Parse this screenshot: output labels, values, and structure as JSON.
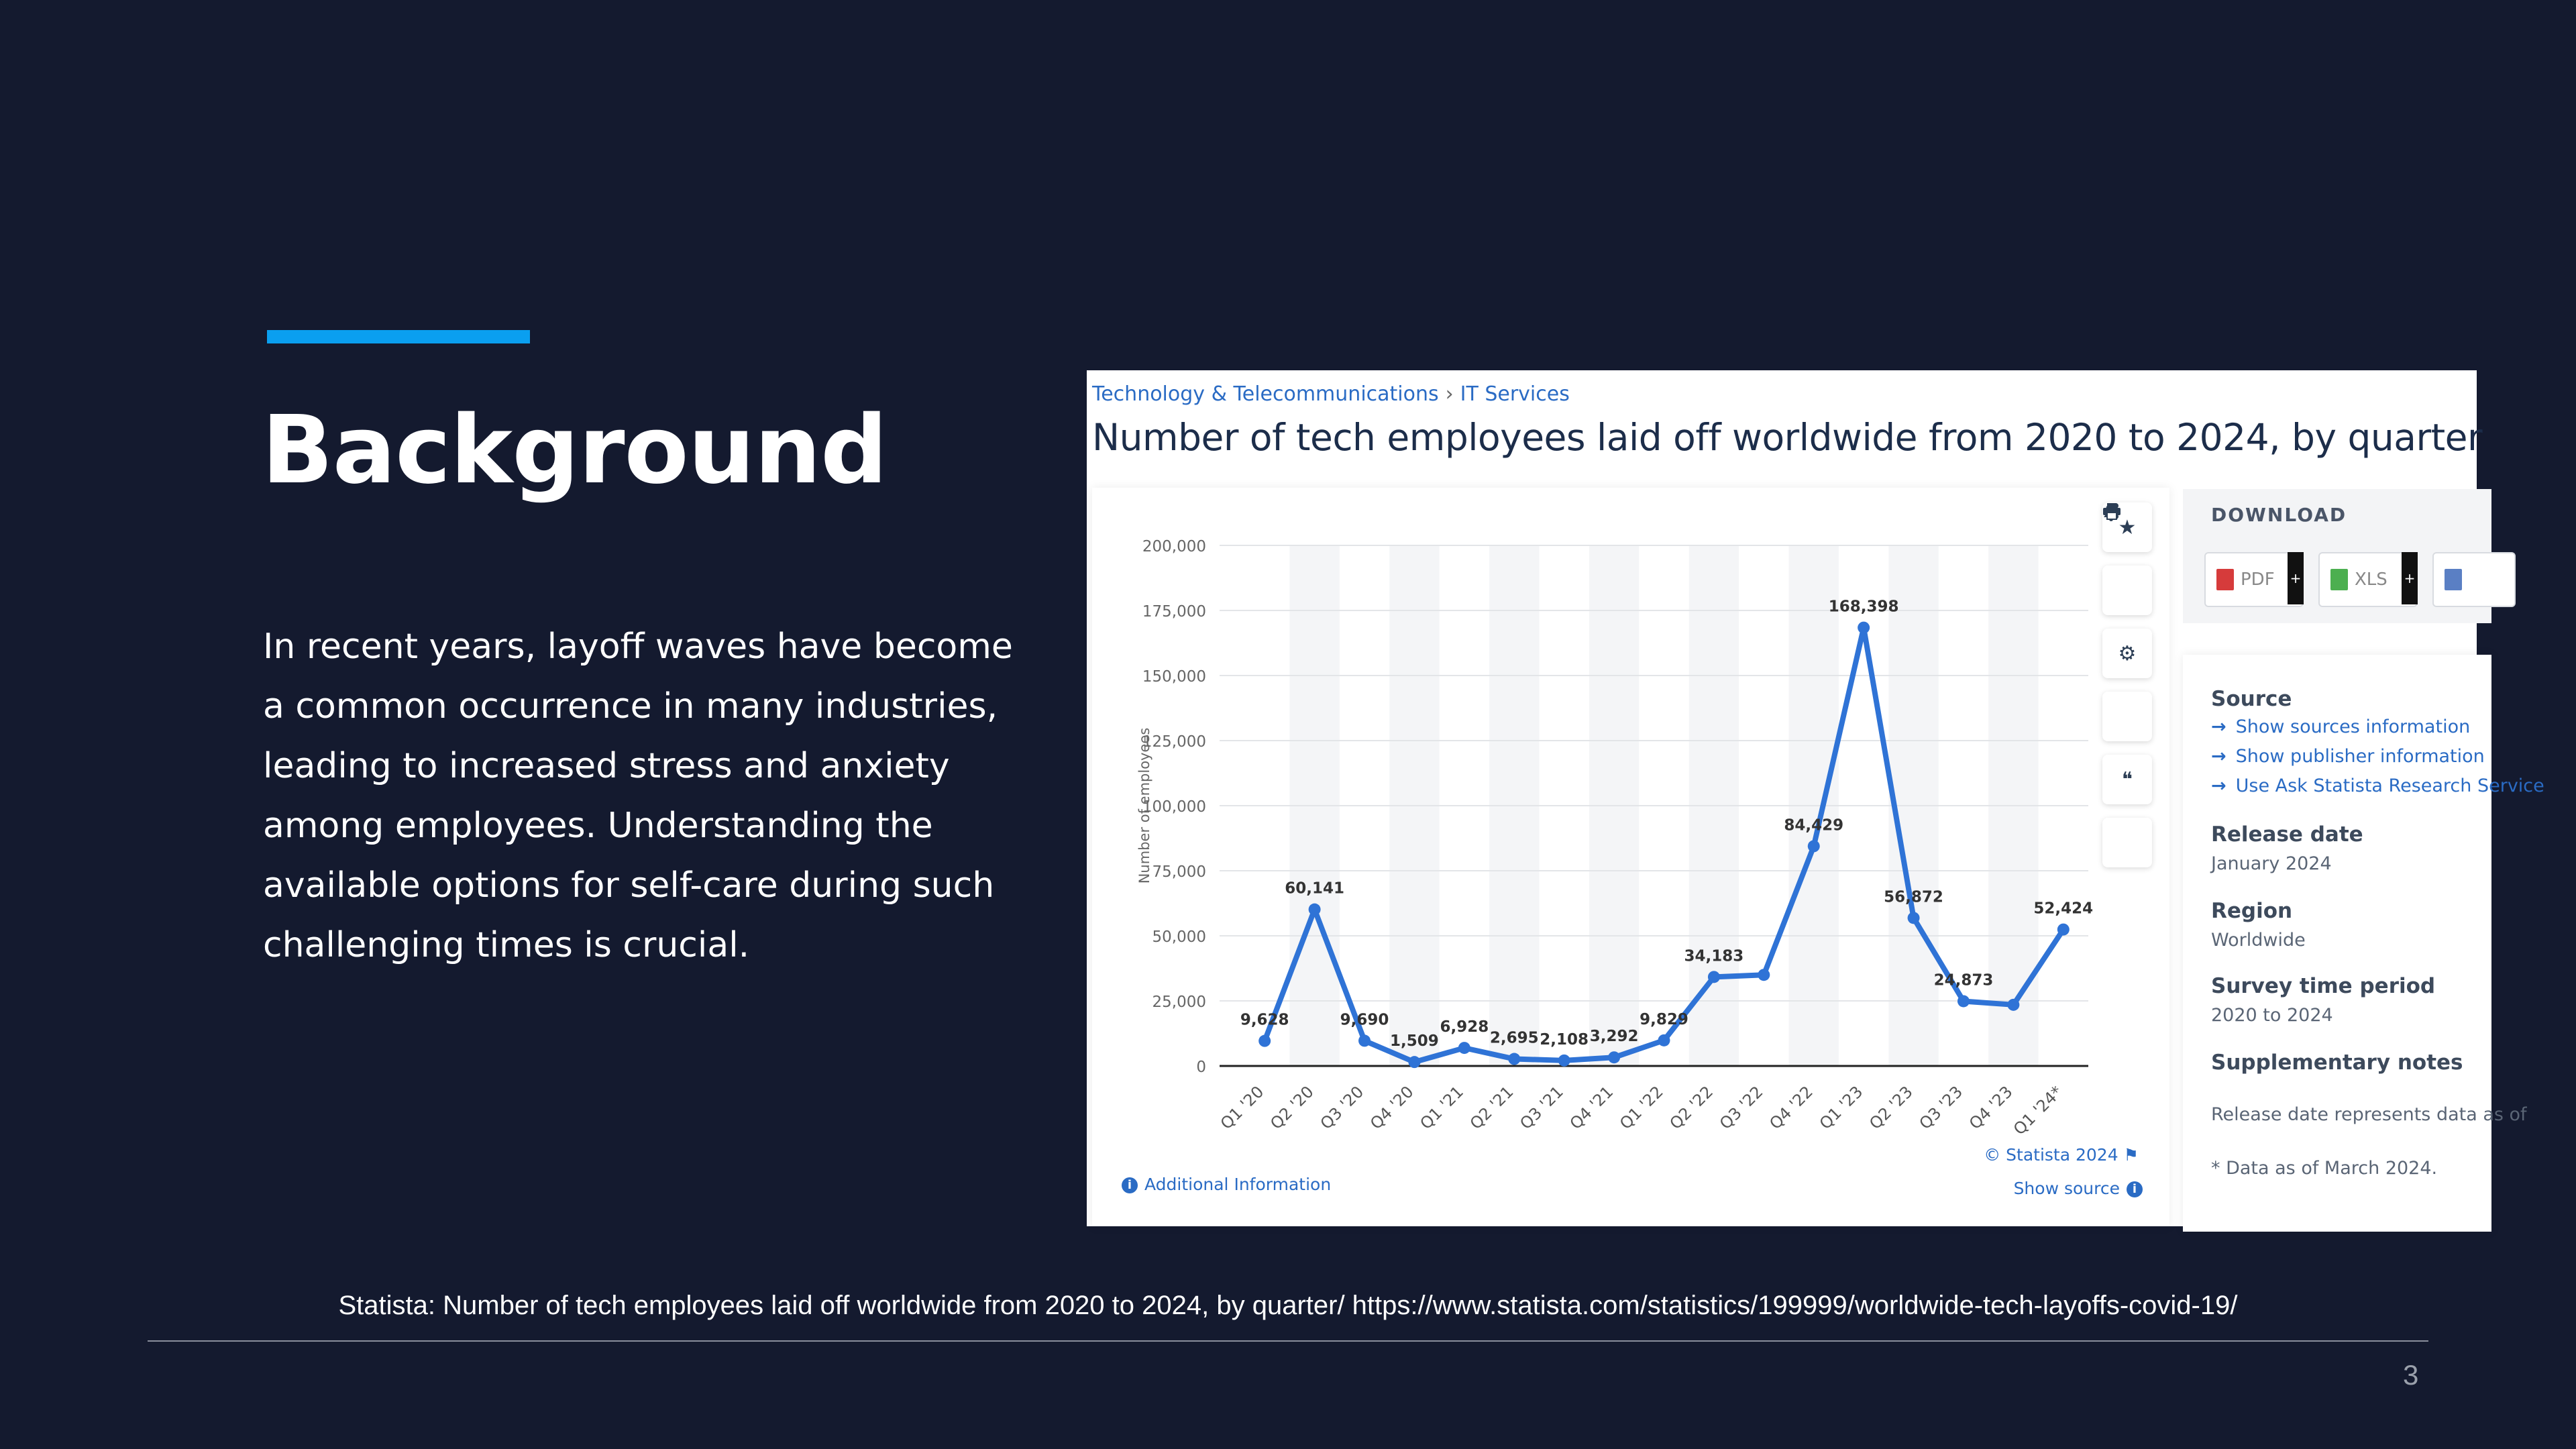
{
  "slide": {
    "title": "Background",
    "body": "In recent years, layoff waves have become a common occurrence in many industries, leading to increased stress and anxiety among employees. Understanding the available options for self-care during such challenging times is crucial.",
    "caption": "Statista: Number of tech employees laid off worldwide from 2020 to 2024, by quarter/ https://www.statista.com/statistics/199999/worldwide-tech-layoffs-covid-19/",
    "page_number": "3",
    "accent_color": "#0a9ff0",
    "background_color": "#141a2f"
  },
  "statista": {
    "breadcrumb": [
      "Technology & Telecommunications",
      "IT Services"
    ],
    "breadcrumb_separator": "›",
    "title": "Number of tech employees laid off worldwide from 2020 to 2024, by quarter",
    "tools": [
      "star-icon",
      "bell-icon",
      "gear-icon",
      "share-icon",
      "quote-icon",
      "print-icon"
    ],
    "additional_info": "Additional Information",
    "credit": "© Statista 2024",
    "show_source": "Show source",
    "download": {
      "title": "DOWNLOAD",
      "buttons": [
        "PDF",
        "XLS"
      ]
    },
    "info": {
      "source_label": "Source",
      "source_links": [
        "Show sources information",
        "Show publisher information",
        "Use Ask Statista Research Service"
      ],
      "release_label": "Release date",
      "release_value": "January 2024",
      "region_label": "Region",
      "region_value": "Worldwide",
      "period_label": "Survey time period",
      "period_value": "2020 to 2024",
      "notes_label": "Supplementary notes",
      "notes_value": "Release date represents data as of",
      "footnote": "* Data as of March 2024."
    }
  },
  "chart_data": {
    "type": "line",
    "title": "Number of tech employees laid off worldwide from 2020 to 2024, by quarter",
    "xlabel": "",
    "ylabel": "Number of employees",
    "categories": [
      "Q1 '20",
      "Q2 '20",
      "Q3 '20",
      "Q4 '20",
      "Q1 '21",
      "Q2 '21",
      "Q3 '21",
      "Q4 '21",
      "Q1 '22",
      "Q2 '22",
      "Q3 '22",
      "Q4 '22",
      "Q1 '23",
      "Q2 '23",
      "Q3 '23",
      "Q4 '23",
      "Q1 '24*"
    ],
    "values": [
      9628,
      60141,
      9690,
      1509,
      6928,
      2695,
      2108,
      3292,
      9829,
      34183,
      35000,
      84429,
      168398,
      56872,
      24873,
      23500,
      52424
    ],
    "labels": [
      "9,628",
      "60,141",
      "9,690",
      "1,509",
      "6,928",
      "2,695",
      "2,108",
      "3,292",
      "9,829",
      "34,183",
      "",
      "84,429",
      "168,398",
      "56,872",
      "24,873",
      "",
      "52,424"
    ],
    "yticks": [
      0,
      25000,
      50000,
      75000,
      100000,
      125000,
      150000,
      175000,
      200000
    ],
    "ytick_labels": [
      "0",
      "25,000",
      "50,000",
      "75,000",
      "100,000",
      "125,000",
      "150,000",
      "175,000",
      "200,000"
    ],
    "ylim": [
      0,
      200000
    ],
    "grid": true,
    "line_color": "#2f73d6"
  }
}
